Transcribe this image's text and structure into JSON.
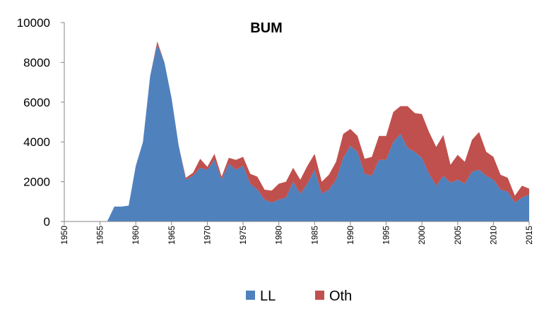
{
  "chart_data": {
    "type": "area",
    "stacked": true,
    "title": "BUM",
    "xlabel": "",
    "ylabel": "",
    "xlim": [
      1950,
      2015
    ],
    "ylim": [
      0,
      10000
    ],
    "y_ticks": [
      0,
      2000,
      4000,
      6000,
      8000,
      10000
    ],
    "x_ticks": [
      1950,
      1955,
      1960,
      1965,
      1970,
      1975,
      1980,
      1985,
      1990,
      1995,
      2000,
      2005,
      2010,
      2015
    ],
    "grid": false,
    "legend_position": "bottom",
    "x": [
      1950,
      1951,
      1952,
      1953,
      1954,
      1955,
      1956,
      1957,
      1958,
      1959,
      1960,
      1961,
      1962,
      1963,
      1964,
      1965,
      1966,
      1967,
      1968,
      1969,
      1970,
      1971,
      1972,
      1973,
      1974,
      1975,
      1976,
      1977,
      1978,
      1979,
      1980,
      1981,
      1982,
      1983,
      1984,
      1985,
      1986,
      1987,
      1988,
      1989,
      1990,
      1991,
      1992,
      1993,
      1994,
      1995,
      1996,
      1997,
      1998,
      1999,
      2000,
      2001,
      2002,
      2003,
      2004,
      2005,
      2006,
      2007,
      2008,
      2009,
      2010,
      2011,
      2012,
      2013,
      2014,
      2015
    ],
    "series": [
      {
        "name": "LL",
        "color": "#4f81bd",
        "values": [
          0,
          0,
          0,
          0,
          0,
          0,
          0,
          750,
          750,
          800,
          2800,
          4000,
          7300,
          8900,
          8000,
          6200,
          3800,
          2100,
          2300,
          2700,
          2600,
          3100,
          2100,
          2900,
          2600,
          2800,
          1900,
          1600,
          1100,
          950,
          1100,
          1200,
          2000,
          1400,
          1900,
          2600,
          1400,
          1600,
          2100,
          3200,
          3800,
          3500,
          2400,
          2300,
          3100,
          3100,
          4000,
          4400,
          3700,
          3500,
          3200,
          2400,
          1800,
          2300,
          1950,
          2100,
          1900,
          2500,
          2600,
          2300,
          2100,
          1600,
          1500,
          950,
          1200,
          1350
        ]
      },
      {
        "name": "Oth",
        "color": "#c0504d",
        "values": [
          0,
          0,
          0,
          0,
          0,
          0,
          0,
          0,
          0,
          0,
          0,
          0,
          0,
          150,
          0,
          0,
          0,
          100,
          150,
          450,
          150,
          300,
          150,
          300,
          500,
          450,
          500,
          650,
          500,
          600,
          800,
          800,
          700,
          700,
          900,
          800,
          600,
          750,
          900,
          1200,
          850,
          800,
          750,
          950,
          1200,
          1200,
          1500,
          1400,
          2100,
          1950,
          2200,
          2100,
          1950,
          2050,
          900,
          1250,
          1100,
          1600,
          1900,
          1200,
          1150,
          750,
          700,
          350,
          600,
          300
        ]
      }
    ]
  }
}
